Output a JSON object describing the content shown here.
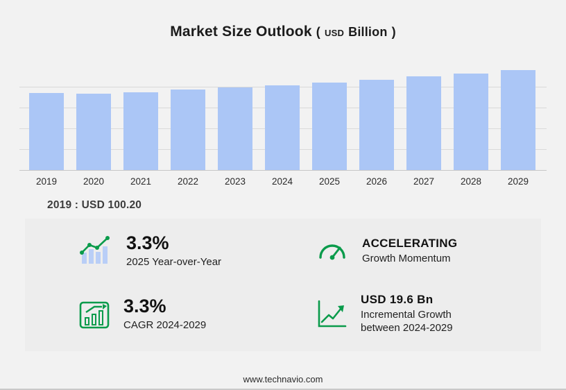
{
  "title": {
    "main": "Market Size Outlook",
    "paren_open": "(",
    "unit_small": "USD",
    "unit_big": "Billion",
    "paren_close": ")"
  },
  "chart_data": {
    "type": "bar",
    "title": "Market Size Outlook (USD Billion)",
    "categories": [
      "2019",
      "2020",
      "2021",
      "2022",
      "2023",
      "2024",
      "2025",
      "2026",
      "2027",
      "2028",
      "2029"
    ],
    "values": [
      100.2,
      98.9,
      100.8,
      104.3,
      107.3,
      110.0,
      113.6,
      117.3,
      121.3,
      125.4,
      129.6
    ],
    "ylim": [
      0,
      135
    ],
    "grid": true,
    "bar_color": "#abc6f6",
    "legend": "none",
    "annotation": "2019 : USD 100.20"
  },
  "base_note": {
    "label": "2019 : USD",
    "value": "100.20"
  },
  "stats": [
    {
      "icon": "yoy-bar-line-icon",
      "value": "3.3%",
      "label": "2025 Year-over-Year",
      "label2": ""
    },
    {
      "icon": "speedometer-icon",
      "value": "ACCELERATING",
      "label": "Growth Momentum",
      "label2": ""
    },
    {
      "icon": "cagr-chart-icon",
      "value": "3.3%",
      "label": "CAGR 2024-2029",
      "label2": ""
    },
    {
      "icon": "incremental-growth-icon",
      "value": "USD 19.6 Bn",
      "label": "Incremental Growth",
      "label2": "between 2024-2029"
    }
  ],
  "footer": {
    "url": "www.technavio.com"
  },
  "colors": {
    "bar": "#abc6f6",
    "accent_green": "#0a9b4b",
    "background": "#f2f2f2"
  }
}
